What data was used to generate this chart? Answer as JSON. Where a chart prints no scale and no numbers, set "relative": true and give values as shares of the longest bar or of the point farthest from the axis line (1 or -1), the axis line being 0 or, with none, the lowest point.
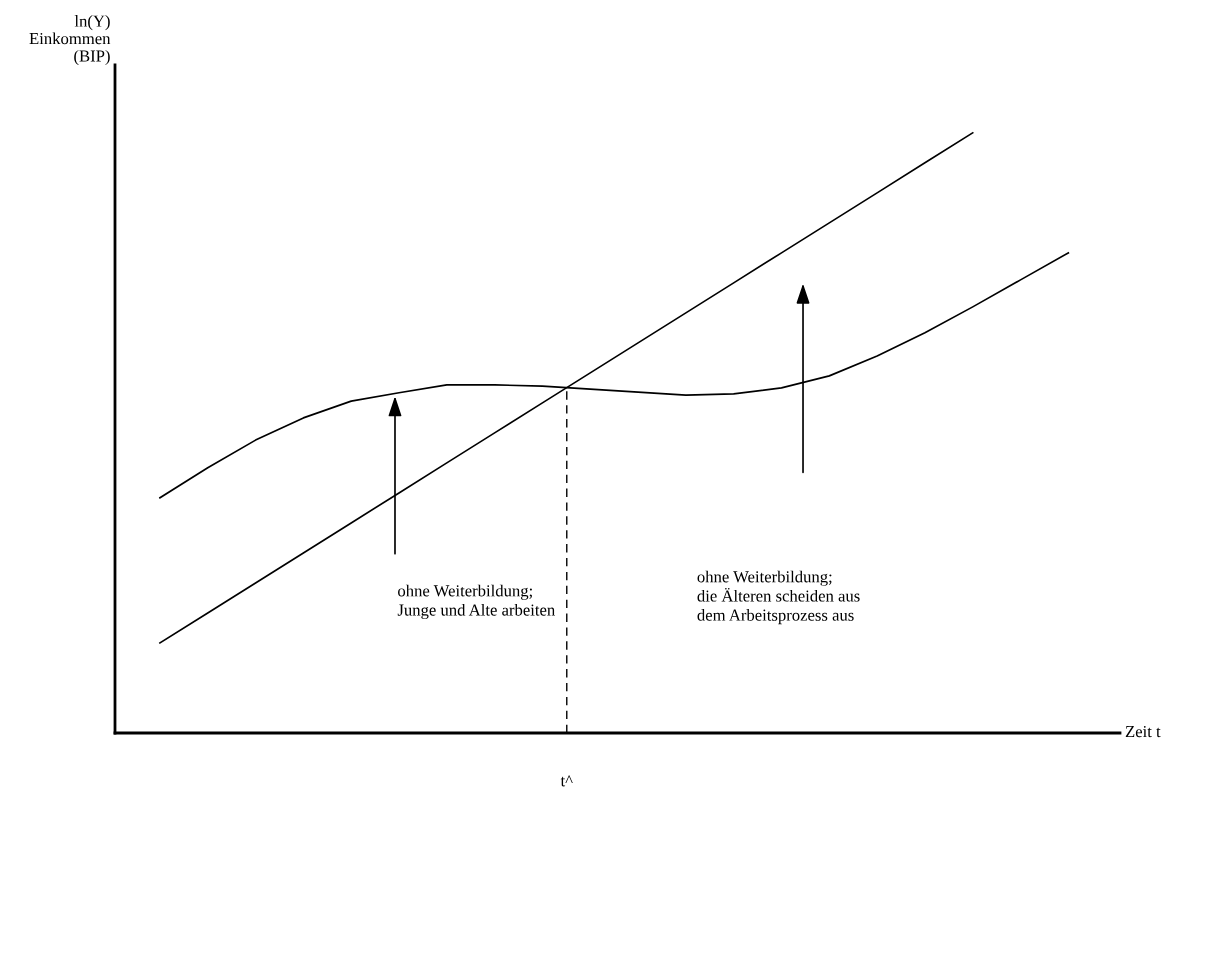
{
  "chart_data": {
    "type": "line",
    "relative": true,
    "xlabel": "Zeit t",
    "ylabel": "ln(Y)\nEinkommen\n(BIP)",
    "categories": [
      null,
      null,
      null,
      null,
      null,
      null,
      null,
      null,
      null,
      null,
      null,
      null,
      null,
      null,
      null,
      null,
      null,
      null,
      null,
      null
    ],
    "series": [
      {
        "color": "#000000",
        "values": [
          0.15,
          0.2,
          0.25,
          0.3,
          0.35,
          0.4,
          0.45,
          0.5,
          0.55,
          0.6,
          0.65,
          0.7,
          0.75,
          0.8,
          0.85,
          0.9,
          0.95,
          1.0,
          null,
          null
        ]
      },
      {
        "color": "#000000",
        "values": [
          0.392,
          0.442,
          0.488,
          0.525,
          0.553,
          0.567,
          0.58,
          0.58,
          0.578,
          0.573,
          0.568,
          0.563,
          0.565,
          0.575,
          0.595,
          0.628,
          0.667,
          0.71,
          0.755,
          0.8
        ]
      }
    ],
    "ref_lines": [
      {
        "axis": "x",
        "label": "t^",
        "line_style": "dashed",
        "color": "#000000"
      }
    ],
    "annotations": [
      "ohne Weiterbildung;\nJunge und Alte arbeiten",
      "ohne Weiterbildung;\ndie Älteren scheiden aus\ndem Arbeitsprozess aus"
    ],
    "legend": false,
    "marker": "none",
    "line_style": "solid"
  }
}
